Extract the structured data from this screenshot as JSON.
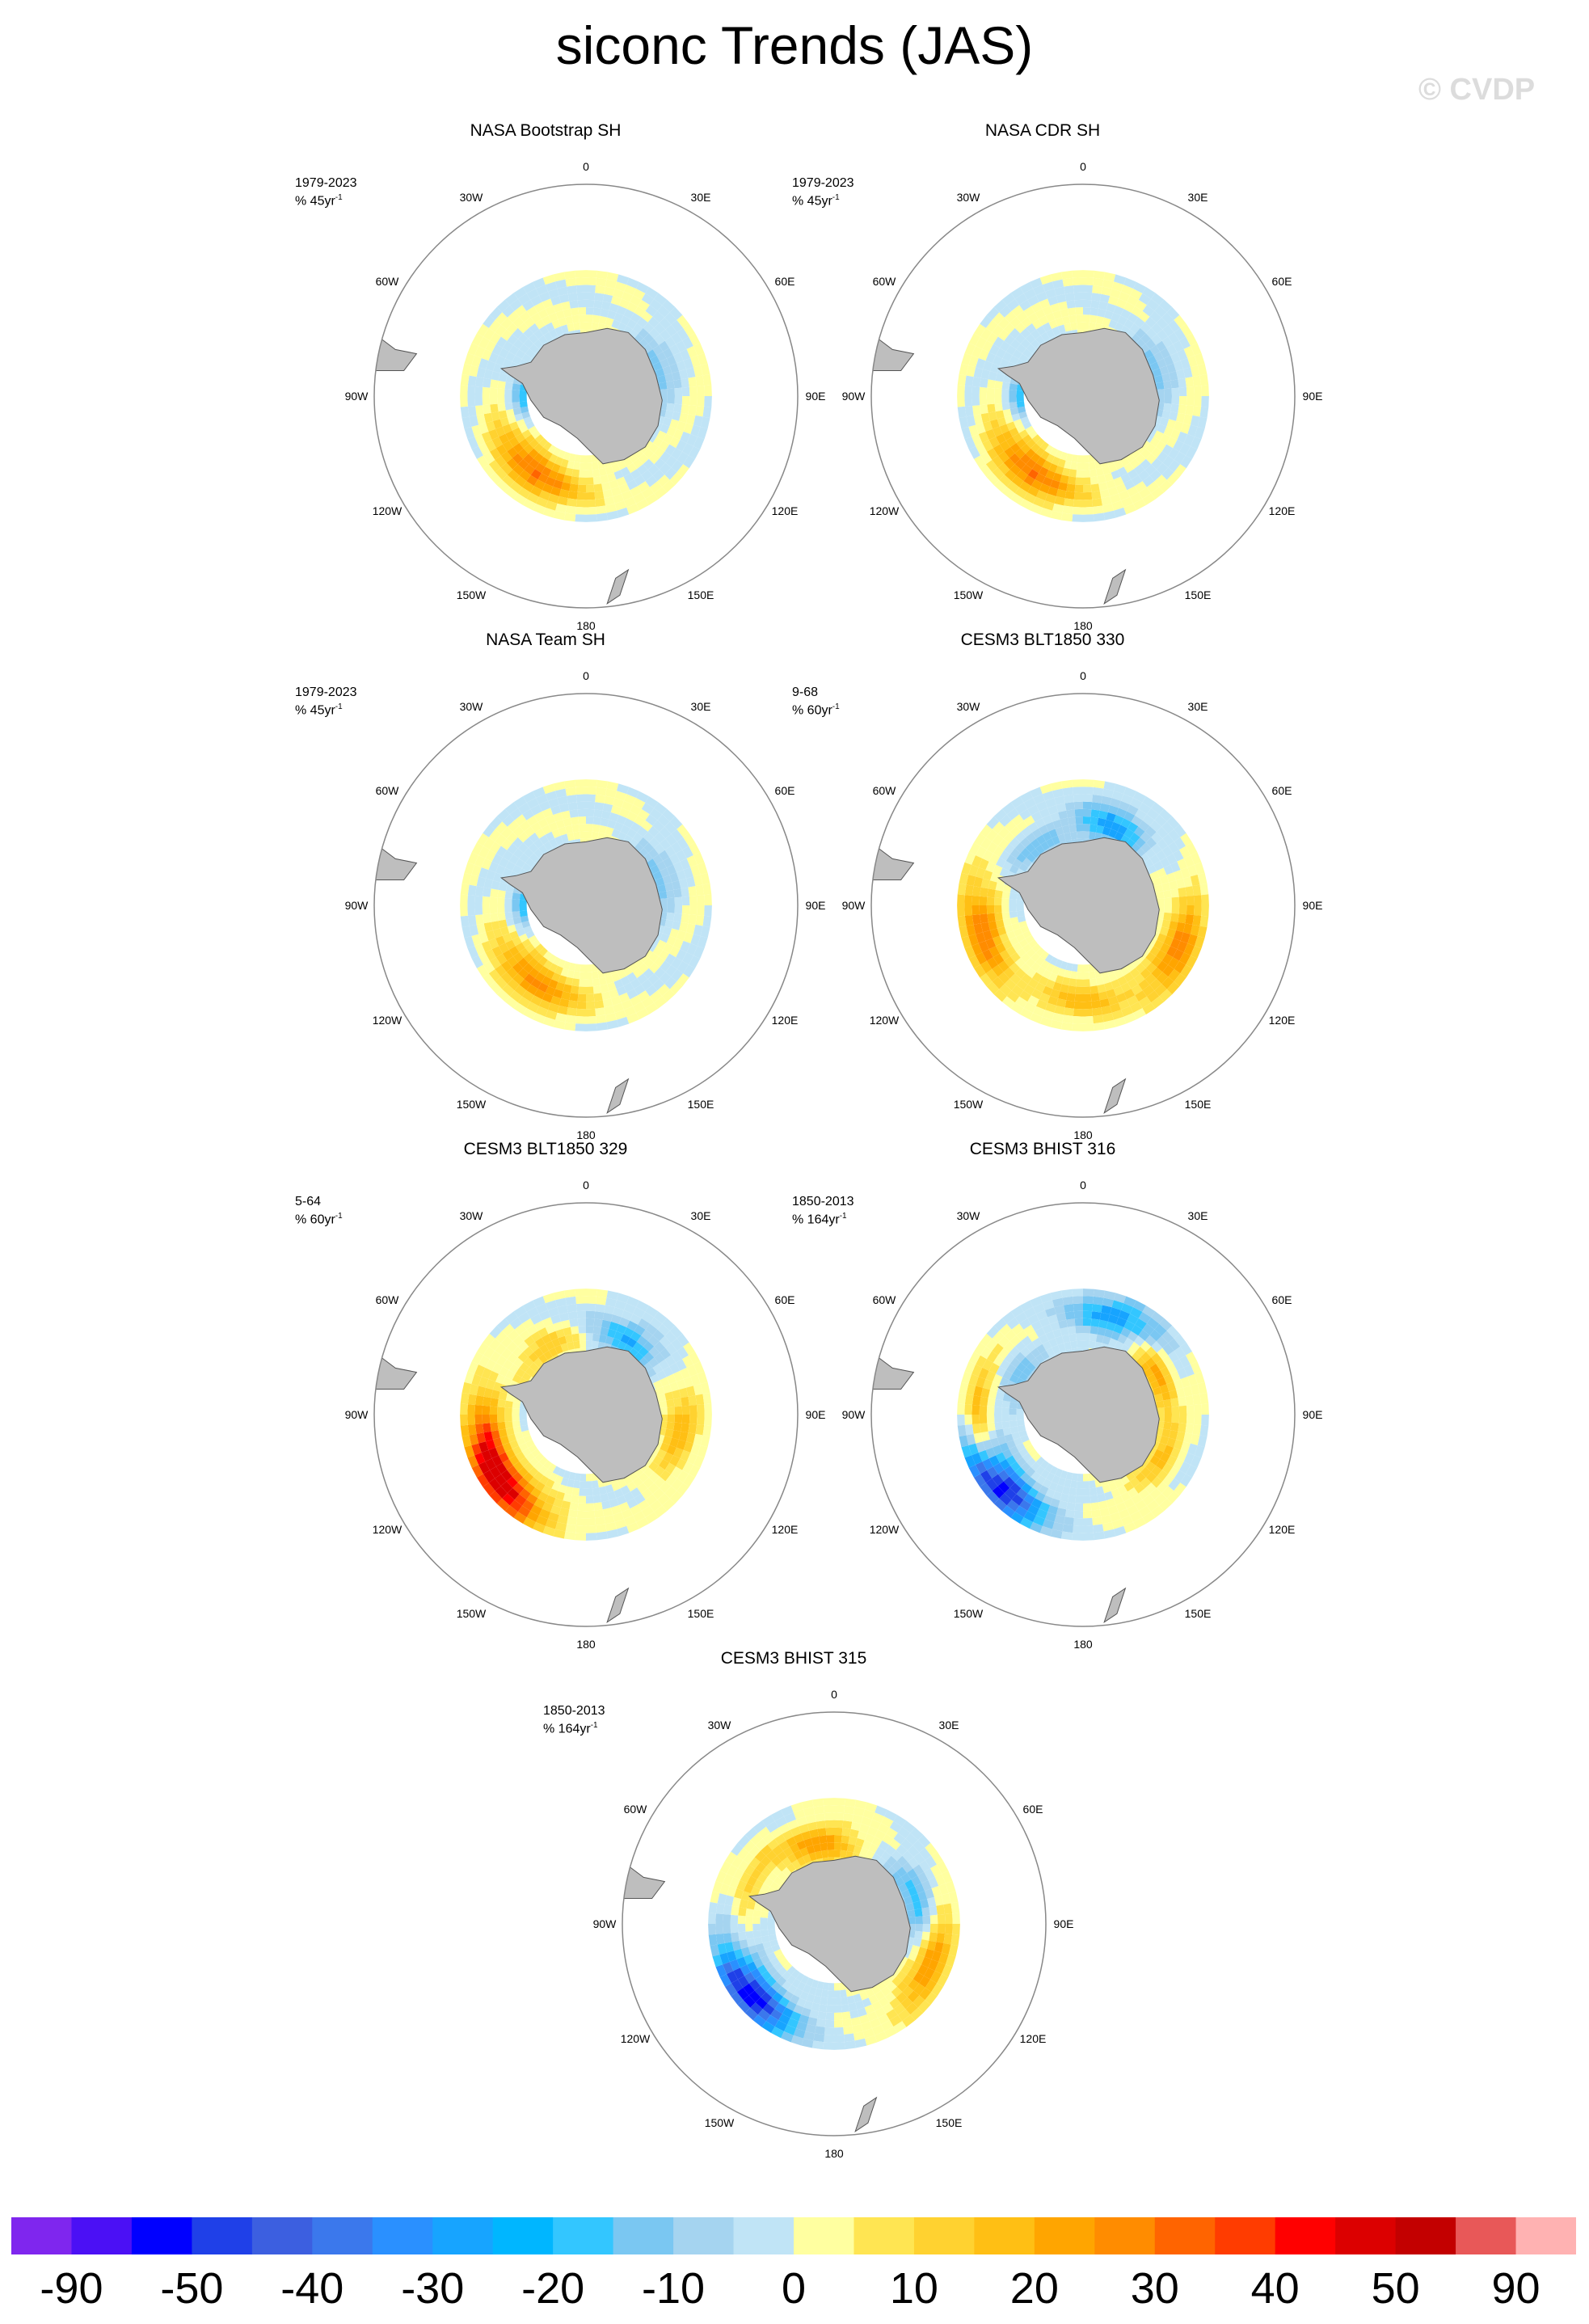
{
  "title": "siconc Trends (JAS)",
  "watermark": "© CVDP",
  "lon_labels": [
    "0",
    "30E",
    "60E",
    "90E",
    "120E",
    "150E",
    "180",
    "150W",
    "120W",
    "90W",
    "60W",
    "30W"
  ],
  "panels": [
    {
      "title": "NASA Bootstrap SH",
      "period": "1979-2023",
      "units_prefix": "% 45yr",
      "units_exp": "-1",
      "pattern": [
        [
          "pos",
          0.45,
          205,
          0.12,
          45
        ],
        [
          "neg",
          0.28,
          270,
          0.12,
          35
        ],
        [
          "pos",
          0.4,
          230,
          0.14,
          35
        ],
        [
          "neg",
          0.36,
          60,
          0.12,
          25
        ],
        [
          "pos",
          0.3,
          40,
          0.1,
          20
        ],
        [
          "neg",
          0.3,
          80,
          0.12,
          20
        ]
      ]
    },
    {
      "title": "NASA CDR SH",
      "period": "1979-2023",
      "units_prefix": "% 45yr",
      "units_exp": "-1",
      "pattern": [
        [
          "pos",
          0.45,
          205,
          0.12,
          45
        ],
        [
          "neg",
          0.28,
          270,
          0.12,
          35
        ],
        [
          "pos",
          0.4,
          230,
          0.14,
          35
        ],
        [
          "neg",
          0.36,
          60,
          0.12,
          25
        ],
        [
          "pos",
          0.3,
          40,
          0.1,
          20
        ],
        [
          "neg",
          0.3,
          80,
          0.12,
          20
        ]
      ]
    },
    {
      "title": "NASA Team SH",
      "period": "1979-2023",
      "units_prefix": "% 45yr",
      "units_exp": "-1",
      "pattern": [
        [
          "pos",
          0.45,
          205,
          0.12,
          40
        ],
        [
          "neg",
          0.28,
          270,
          0.12,
          35
        ],
        [
          "pos",
          0.4,
          230,
          0.14,
          30
        ],
        [
          "neg",
          0.36,
          60,
          0.12,
          25
        ],
        [
          "pos",
          0.3,
          40,
          0.1,
          20
        ],
        [
          "neg",
          0.3,
          80,
          0.12,
          20
        ]
      ]
    },
    {
      "title": "CESM3 BLT1850 330",
      "period": "9-68",
      "units_prefix": "% 60yr",
      "units_exp": "-1",
      "pattern": [
        [
          "pos",
          0.5,
          255,
          0.14,
          60
        ],
        [
          "pos",
          0.5,
          115,
          0.14,
          55
        ],
        [
          "neg",
          0.4,
          20,
          0.14,
          45
        ],
        [
          "pos",
          0.45,
          180,
          0.12,
          35
        ],
        [
          "neg",
          0.35,
          320,
          0.1,
          25
        ]
      ]
    },
    {
      "title": "CESM3 BLT1850 329",
      "period": "5-64",
      "units_prefix": "% 60yr",
      "units_exp": "-1",
      "pattern": [
        [
          "pos",
          0.52,
          230,
          0.16,
          90
        ],
        [
          "pos",
          0.48,
          260,
          0.12,
          50
        ],
        [
          "neg",
          0.4,
          30,
          0.14,
          40
        ],
        [
          "pos",
          0.45,
          100,
          0.12,
          35
        ],
        [
          "pos",
          0.36,
          330,
          0.1,
          30
        ]
      ]
    },
    {
      "title": "CESM3 BHIST 316",
      "period": "1850-2013",
      "units_prefix": "% 164yr",
      "units_exp": "-1",
      "pattern": [
        [
          "neg",
          0.52,
          230,
          0.16,
          90
        ],
        [
          "neg",
          0.48,
          20,
          0.14,
          50
        ],
        [
          "pos",
          0.4,
          60,
          0.1,
          45
        ],
        [
          "pos",
          0.5,
          270,
          0.08,
          45
        ],
        [
          "pos",
          0.42,
          120,
          0.1,
          30
        ],
        [
          "neg",
          0.34,
          300,
          0.1,
          25
        ]
      ]
    },
    {
      "title": "CESM3 BHIST 315",
      "period": "1850-2013",
      "units_prefix": "% 164yr",
      "units_exp": "-1",
      "pattern": [
        [
          "neg",
          0.52,
          230,
          0.16,
          90
        ],
        [
          "pos",
          0.38,
          350,
          0.14,
          45
        ],
        [
          "pos",
          0.5,
          115,
          0.12,
          50
        ],
        [
          "neg",
          0.4,
          70,
          0.1,
          40
        ],
        [
          "pos",
          0.44,
          300,
          0.08,
          25
        ]
      ]
    }
  ],
  "colorbar": {
    "tick_labels": [
      "-90",
      "-50",
      "-40",
      "-30",
      "-20",
      "-10",
      "0",
      "10",
      "20",
      "30",
      "40",
      "50",
      "90"
    ],
    "colors": [
      "#7f26ee",
      "#4b10f5",
      "#0000ff",
      "#1f40e8",
      "#3c5fe0",
      "#3b78ec",
      "#2a90ff",
      "#17a4ff",
      "#00b6ff",
      "#33c6ff",
      "#7ac7f2",
      "#a5d4f0",
      "#c0e4f6",
      "#ffffa0",
      "#ffe552",
      "#ffd230",
      "#ffbf14",
      "#ffa500",
      "#ff8c00",
      "#ff6400",
      "#ff3c00",
      "#ff0000",
      "#dc0000",
      "#c30000",
      "#e85858",
      "#ffb2b2"
    ]
  }
}
